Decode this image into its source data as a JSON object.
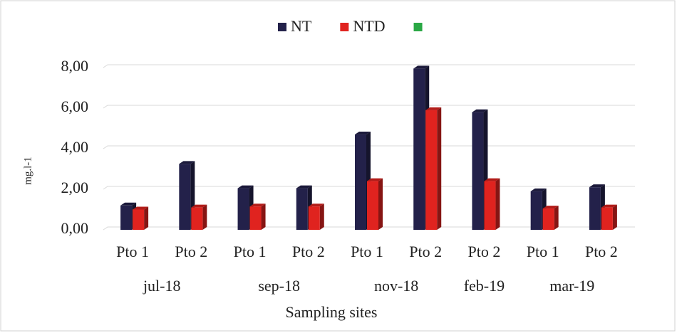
{
  "chart_data": {
    "type": "bar",
    "y_label": "mg.l-1",
    "x_label": "Sampling sites",
    "groups": [
      {
        "label": "jul-18",
        "categories": [
          "Pto 1",
          "Pto 2"
        ]
      },
      {
        "label": "sep-18",
        "categories": [
          "Pto 1",
          "Pto 2"
        ]
      },
      {
        "label": "nov-18",
        "categories": [
          "Pto 1",
          "Pto 2"
        ]
      },
      {
        "label": "feb-19",
        "categories": [
          "Pto 2"
        ]
      },
      {
        "label": "mar-19",
        "categories": [
          "Pto 1",
          "Pto 2"
        ]
      }
    ],
    "series": [
      {
        "name": "NT",
        "color": "#23214a",
        "values": [
          1.2,
          3.25,
          2.05,
          2.05,
          4.7,
          7.95,
          5.8,
          1.9,
          2.1
        ]
      },
      {
        "name": "NTD",
        "color": "#e0231f",
        "values": [
          1.0,
          1.1,
          1.15,
          1.15,
          2.4,
          5.9,
          2.4,
          1.05,
          1.1
        ]
      },
      {
        "color": "#2aa845",
        "values": [
          null,
          null,
          null,
          null,
          null,
          null,
          null,
          null,
          null
        ]
      }
    ],
    "ylim": [
      0,
      8
    ],
    "yticks": [
      {
        "value": 0,
        "label": "0,00"
      },
      {
        "value": 2,
        "label": "2,00"
      },
      {
        "value": 4,
        "label": "4,00"
      },
      {
        "value": 6,
        "label": "6,00"
      },
      {
        "value": 8,
        "label": "8,00"
      }
    ],
    "grid": true
  }
}
